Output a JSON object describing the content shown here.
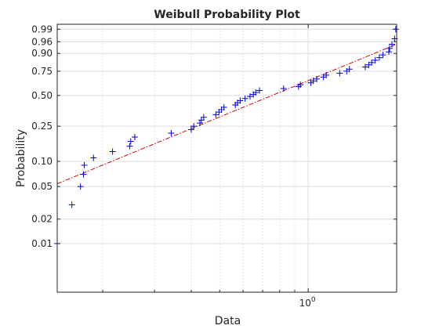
{
  "chart_data": {
    "type": "scatter",
    "title": "Weibull Probability Plot",
    "xlabel": "Data",
    "ylabel": "Probability",
    "x_scale": "log",
    "xlim": [
      0.14,
      2.0
    ],
    "x_tick": {
      "value": 1,
      "base": "10",
      "exponent": "0"
    },
    "y_scale": "weibull",
    "ylim": [
      0.0025,
      0.995
    ],
    "y_ticks": [
      {
        "value": 0.01,
        "label": "0.01"
      },
      {
        "value": 0.02,
        "label": "0.02"
      },
      {
        "value": 0.05,
        "label": "0.05"
      },
      {
        "value": 0.1,
        "label": "0.10"
      },
      {
        "value": 0.25,
        "label": "0.25"
      },
      {
        "value": 0.5,
        "label": "0.50"
      },
      {
        "value": 0.75,
        "label": "0.75"
      },
      {
        "value": 0.9,
        "label": "0.90"
      },
      {
        "value": 0.96,
        "label": "0.96"
      },
      {
        "value": 0.99,
        "label": "0.99"
      }
    ],
    "grid": true,
    "marker_color": "#0000cc",
    "fit_line_color": "#cc0000",
    "fit_line": [
      [
        0.14,
        0.054
      ],
      [
        2.0,
        0.95
      ]
    ],
    "points": [
      [
        0.14,
        0.01
      ],
      [
        0.157,
        0.03
      ],
      [
        0.168,
        0.05
      ],
      [
        0.172,
        0.07
      ],
      [
        0.173,
        0.09
      ],
      [
        0.186,
        0.11
      ],
      [
        0.216,
        0.13
      ],
      [
        0.247,
        0.15
      ],
      [
        0.249,
        0.17
      ],
      [
        0.257,
        0.19
      ],
      [
        0.342,
        0.21
      ],
      [
        0.4,
        0.23
      ],
      [
        0.408,
        0.25
      ],
      [
        0.428,
        0.27
      ],
      [
        0.433,
        0.29
      ],
      [
        0.441,
        0.31
      ],
      [
        0.485,
        0.33
      ],
      [
        0.497,
        0.35
      ],
      [
        0.507,
        0.37
      ],
      [
        0.517,
        0.39
      ],
      [
        0.565,
        0.41
      ],
      [
        0.575,
        0.43
      ],
      [
        0.587,
        0.45
      ],
      [
        0.61,
        0.47
      ],
      [
        0.634,
        0.49
      ],
      [
        0.651,
        0.51
      ],
      [
        0.663,
        0.53
      ],
      [
        0.683,
        0.55
      ],
      [
        0.825,
        0.57
      ],
      [
        0.927,
        0.59
      ],
      [
        0.941,
        0.61
      ],
      [
        1.021,
        0.63
      ],
      [
        1.041,
        0.65
      ],
      [
        1.069,
        0.67
      ],
      [
        1.127,
        0.69
      ],
      [
        1.152,
        0.71
      ],
      [
        1.28,
        0.73
      ],
      [
        1.352,
        0.75
      ],
      [
        1.381,
        0.77
      ],
      [
        1.564,
        0.79
      ],
      [
        1.607,
        0.81
      ],
      [
        1.645,
        0.83
      ],
      [
        1.69,
        0.85
      ],
      [
        1.746,
        0.87
      ],
      [
        1.796,
        0.89
      ],
      [
        1.881,
        0.91
      ],
      [
        1.893,
        0.93
      ],
      [
        1.927,
        0.95
      ],
      [
        1.968,
        0.97
      ],
      [
        1.986,
        0.99
      ]
    ]
  }
}
